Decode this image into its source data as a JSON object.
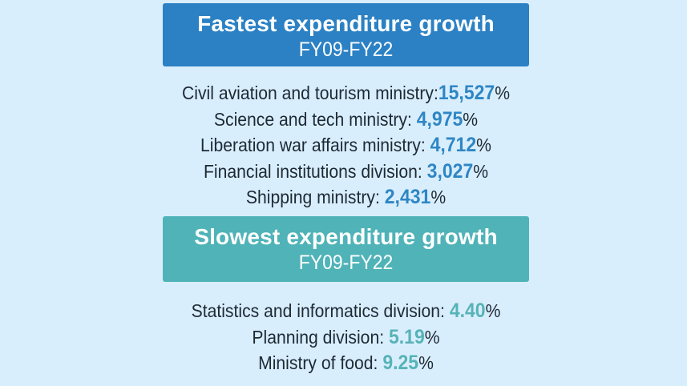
{
  "page": {
    "background": "#d9eefc",
    "label_text_color": "#1d2935"
  },
  "chart_data": [
    {
      "type": "table",
      "title": "Fastest expenditure growth",
      "subtitle": "FY09-FY22",
      "categories": [
        "Civil aviation and tourism ministry",
        "Science and tech ministry",
        "Liberation war affairs ministry",
        "Financial institutions division",
        "Shipping ministry"
      ],
      "values": [
        15527,
        4975,
        4712,
        3027,
        2431
      ],
      "unit": "%"
    },
    {
      "type": "table",
      "title": "Slowest expenditure growth",
      "subtitle": "FY09-FY22",
      "categories": [
        "Statistics and informatics division",
        "Planning division",
        "Ministry of food"
      ],
      "values": [
        4.4,
        5.19,
        9.25
      ],
      "unit": "%"
    }
  ],
  "sections": [
    {
      "header": {
        "title": "Fastest expenditure growth",
        "subtitle": "FY09-FY22"
      },
      "colors": {
        "box": "#2b81c4",
        "value": "#2e86c5"
      },
      "items": [
        {
          "label": "Civil aviation and tourism ministry:",
          "value": "15,527",
          "suffix": "%"
        },
        {
          "label": "Science and tech ministry: ",
          "value": "4,975",
          "suffix": "%"
        },
        {
          "label": "Liberation war affairs ministry: ",
          "value": "4,712",
          "suffix": "%"
        },
        {
          "label": "Financial institutions division: ",
          "value": "3,027",
          "suffix": "%"
        },
        {
          "label": "Shipping ministry: ",
          "value": "2,431",
          "suffix": "%"
        }
      ]
    },
    {
      "header": {
        "title": "Slowest expenditure growth",
        "subtitle": "FY09-FY22"
      },
      "colors": {
        "box": "#4fb3b8",
        "value": "#56b3b7"
      },
      "items": [
        {
          "label": "Statistics and informatics division: ",
          "value": "4.40",
          "suffix": "%"
        },
        {
          "label": "Planning division: ",
          "value": "5.19",
          "suffix": "%"
        },
        {
          "label": "Ministry of food: ",
          "value": "9.25",
          "suffix": "%"
        }
      ]
    }
  ]
}
